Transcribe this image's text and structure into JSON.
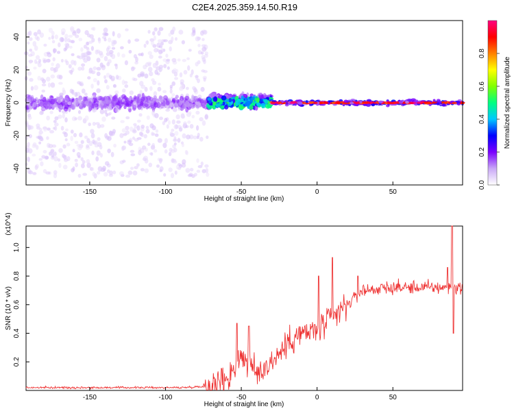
{
  "title": "C2E4.2025.359.14.50.R19",
  "chart_data": [
    {
      "type": "heatmap",
      "xlabel": "Height of straight line (km)",
      "ylabel": "Frequency (Hz)",
      "xlim": [
        -192,
        96
      ],
      "ylim": [
        -50,
        50
      ],
      "xticks": [
        -150,
        -100,
        -50,
        0,
        50
      ],
      "yticks": [
        -40,
        -20,
        0,
        20,
        40
      ],
      "colorbar": {
        "label": "Normalized spectral amplitude",
        "range": [
          0,
          1
        ],
        "ticks": [
          0.0,
          0.2,
          0.4,
          0.6,
          0.8
        ],
        "colors": [
          "#ffffff",
          "#c9a8f7",
          "#7a00ff",
          "#0000ff",
          "#00c8ff",
          "#00ff80",
          "#80ff00",
          "#ffff00",
          "#ff8000",
          "#ff0000",
          "#ff0080"
        ]
      },
      "features": [
        {
          "x_range": [
            -192,
            -72
          ],
          "freq_center": 0,
          "freq_spread": 45,
          "amplitude": 0.15
        },
        {
          "x_range": [
            -72,
            -30
          ],
          "freq_center": 1,
          "freq_spread": 6,
          "amplitude": 0.45
        },
        {
          "x_range": [
            -30,
            96
          ],
          "freq_center": 0,
          "freq_spread": 2,
          "amplitude": 0.95
        }
      ]
    },
    {
      "type": "line",
      "xlabel": "Height of straight line (km)",
      "ylabel": "SNR (10 * v/v)",
      "y_multiplier": "(x10^4)",
      "xlim": [
        -192,
        96
      ],
      "ylim": [
        0,
        1.15
      ],
      "xticks": [
        -150,
        -100,
        -50,
        0,
        50
      ],
      "yticks": [
        0.2,
        0.4,
        0.6,
        0.8,
        1.0
      ],
      "color": "#ee3333",
      "trend": [
        {
          "x": -192,
          "y": 0.02
        },
        {
          "x": -90,
          "y": 0.02
        },
        {
          "x": -70,
          "y": 0.03
        },
        {
          "x": -58,
          "y": 0.1
        },
        {
          "x": -50,
          "y": 0.25
        },
        {
          "x": -40,
          "y": 0.12
        },
        {
          "x": -30,
          "y": 0.2
        },
        {
          "x": -15,
          "y": 0.38
        },
        {
          "x": 0,
          "y": 0.42
        },
        {
          "x": 10,
          "y": 0.5
        },
        {
          "x": 20,
          "y": 0.6
        },
        {
          "x": 30,
          "y": 0.7
        },
        {
          "x": 50,
          "y": 0.72
        },
        {
          "x": 80,
          "y": 0.72
        },
        {
          "x": 96,
          "y": 0.72
        }
      ],
      "peaks": [
        {
          "x": -53,
          "y": 0.47
        },
        {
          "x": -45,
          "y": 0.45
        },
        {
          "x": 1,
          "y": 0.8
        },
        {
          "x": 10,
          "y": 0.93
        },
        {
          "x": 27,
          "y": 0.8
        },
        {
          "x": 86,
          "y": 0.86
        },
        {
          "x": 89,
          "y": 1.15
        },
        {
          "x": 90,
          "y": 0.4
        }
      ]
    }
  ]
}
